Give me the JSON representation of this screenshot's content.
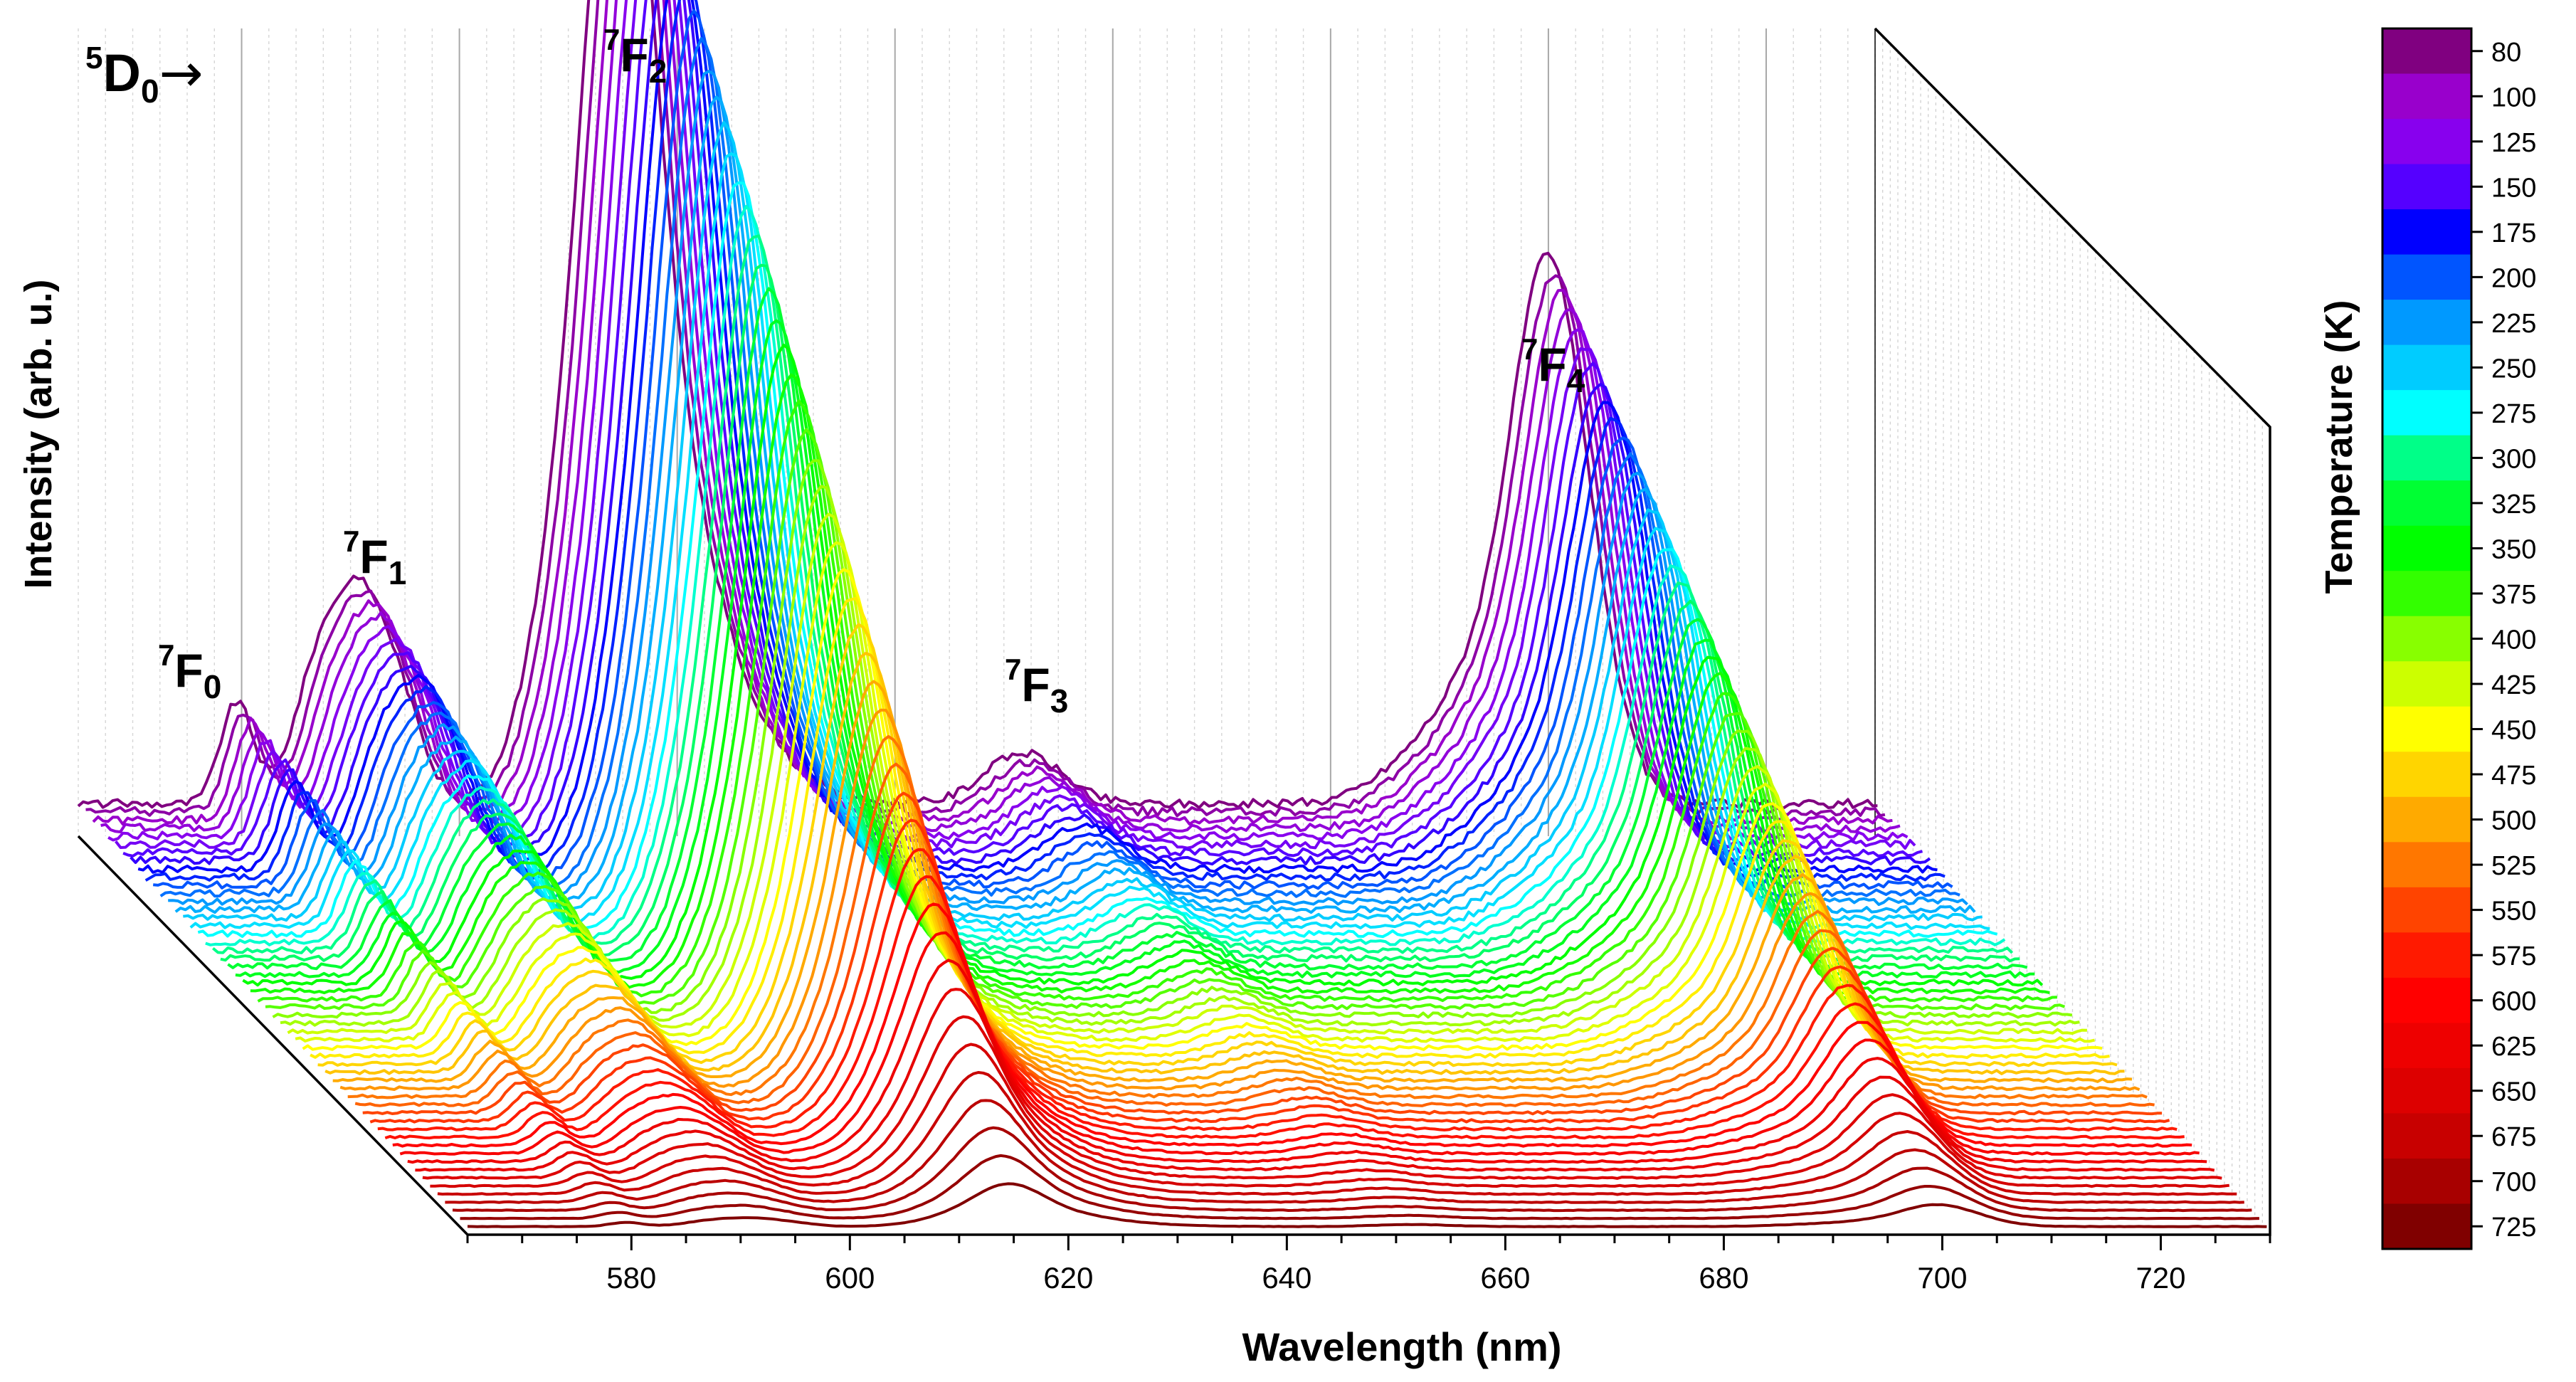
{
  "chart_data": {
    "type": "line",
    "style": "waterfall-3d",
    "title": "",
    "xlabel": "Wavelength (nm)",
    "ylabel": "Intensity (arb. u.)",
    "xlim": [
      565,
      730
    ],
    "xticks": [
      580,
      600,
      620,
      640,
      660,
      680,
      700,
      720
    ],
    "corner_label": {
      "pre": "5",
      "main": "D",
      "sub": "0",
      "arrow": "→"
    },
    "peak_labels": [
      {
        "sup": "7",
        "main": "F",
        "sub": "0",
        "wavelength": 579
      },
      {
        "sup": "7",
        "main": "F",
        "sub": "1",
        "wavelength": 593
      },
      {
        "sup": "7",
        "main": "F",
        "sub": "2",
        "wavelength": 614
      },
      {
        "sup": "7",
        "main": "F",
        "sub": "3",
        "wavelength": 652
      },
      {
        "sup": "7",
        "main": "F",
        "sub": "4",
        "wavelength": 700
      }
    ],
    "peaks": [
      {
        "center": 579.5,
        "width": 1.5,
        "amp": 0.14
      },
      {
        "center": 587.5,
        "width": 2.5,
        "amp": 0.21
      },
      {
        "center": 591.5,
        "width": 2.2,
        "amp": 0.22
      },
      {
        "center": 595.0,
        "width": 2.0,
        "amp": 0.1
      },
      {
        "center": 610.0,
        "width": 3.5,
        "amp": 0.32
      },
      {
        "center": 614.5,
        "width": 3.0,
        "amp": 0.95
      },
      {
        "center": 617.5,
        "width": 4.5,
        "amp": 0.4
      },
      {
        "center": 622.0,
        "width": 6.0,
        "amp": 0.14
      },
      {
        "center": 651.5,
        "width": 3.5,
        "amp": 0.07
      },
      {
        "center": 688.0,
        "width": 4.0,
        "amp": 0.06
      },
      {
        "center": 693.5,
        "width": 3.5,
        "amp": 0.14
      },
      {
        "center": 698.5,
        "width": 3.0,
        "amp": 0.33
      },
      {
        "center": 701.0,
        "width": 3.5,
        "amp": 0.45
      }
    ],
    "series_temperatures": [
      80,
      90,
      100,
      110,
      125,
      135,
      150,
      160,
      175,
      185,
      200,
      210,
      225,
      235,
      250,
      260,
      275,
      285,
      300,
      310,
      325,
      335,
      350,
      360,
      375,
      385,
      400,
      410,
      425,
      435,
      450,
      460,
      475,
      485,
      500,
      510,
      525,
      535,
      550,
      560,
      575,
      585,
      600,
      610,
      625,
      635,
      650,
      660,
      675,
      685,
      700,
      712,
      725
    ],
    "colorbar": {
      "label": "Temperature (K)",
      "ticks": [
        80,
        100,
        125,
        150,
        175,
        200,
        225,
        250,
        275,
        300,
        325,
        350,
        375,
        400,
        425,
        450,
        475,
        500,
        525,
        550,
        575,
        600,
        625,
        650,
        675,
        700,
        725
      ],
      "colors": [
        "#800080",
        "#9900cc",
        "#8800ee",
        "#5500ff",
        "#0000ff",
        "#0055ff",
        "#0099ff",
        "#00ccff",
        "#00ffff",
        "#00ff88",
        "#00ff33",
        "#00ff00",
        "#33ff00",
        "#88ff00",
        "#ccff00",
        "#ffff00",
        "#ffd500",
        "#ffaa00",
        "#ff7700",
        "#ff4400",
        "#ff1a00",
        "#ff0000",
        "#ee0000",
        "#dd0000",
        "#c80000",
        "#a80000",
        "#800000"
      ]
    }
  }
}
